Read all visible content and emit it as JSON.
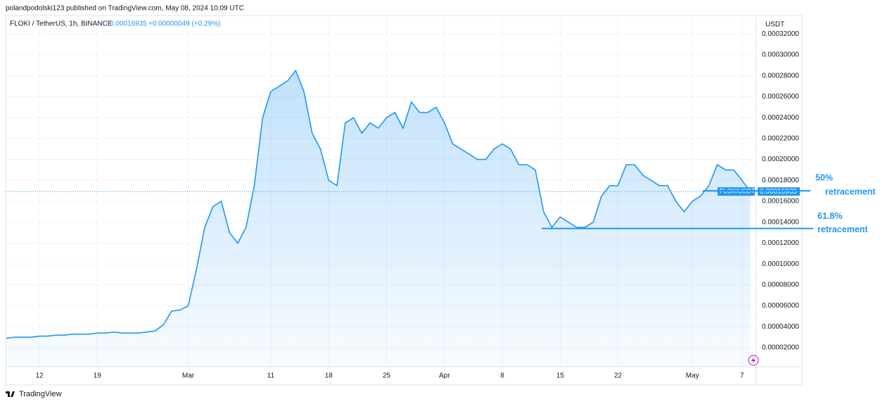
{
  "chart_data": {
    "type": "area",
    "header": "polandpodolski123 published on TradingView.com, May 08, 2024 10:09 UTC",
    "title": "FLOKI / TetherUS, 1h, BINANCE",
    "price": "0.00016935",
    "change": "+0.00000049 (+0.29%)",
    "currency": "USDT",
    "symbol": "FLOKIUSDT",
    "footer": "TradingView",
    "color": "#2196f3",
    "categories": [
      null,
      null,
      null,
      null,
      "12",
      null,
      null,
      null,
      null,
      null,
      null,
      "19",
      null,
      null,
      null,
      null,
      null,
      null,
      null,
      null,
      null,
      null,
      "Mar",
      null,
      null,
      null,
      null,
      null,
      null,
      null,
      null,
      null,
      "11",
      null,
      null,
      null,
      null,
      null,
      null,
      "18",
      null,
      null,
      null,
      null,
      null,
      null,
      "25",
      null,
      null,
      null,
      null,
      null,
      null,
      "Apr",
      null,
      null,
      null,
      null,
      null,
      null,
      "8",
      null,
      null,
      null,
      null,
      null,
      null,
      "15",
      null,
      null,
      null,
      null,
      null,
      null,
      "22",
      null,
      null,
      null,
      null,
      null,
      null,
      null,
      null,
      "May",
      null,
      null,
      null,
      null,
      null,
      "7",
      null
    ],
    "values": [
      2.9e-05,
      3e-05,
      3e-05,
      3e-05,
      3.1e-05,
      3.1e-05,
      3.2e-05,
      3.2e-05,
      3.3e-05,
      3.3e-05,
      3.3e-05,
      3.4e-05,
      3.4e-05,
      3.5e-05,
      3.4e-05,
      3.4e-05,
      3.4e-05,
      3.5e-05,
      3.6e-05,
      4.2e-05,
      5.5e-05,
      5.6e-05,
      6e-05,
      9.5e-05,
      0.000135,
      0.000155,
      0.00016,
      0.00013,
      0.00012,
      0.000135,
      0.000175,
      0.00024,
      0.000265,
      0.00027,
      0.000275,
      0.000285,
      0.000265,
      0.000225,
      0.00021,
      0.00018,
      0.000175,
      0.000235,
      0.00024,
      0.000225,
      0.000235,
      0.00023,
      0.00024,
      0.000245,
      0.00023,
      0.000255,
      0.000245,
      0.000245,
      0.00025,
      0.000235,
      0.000215,
      0.00021,
      0.000205,
      0.0002,
      0.0002,
      0.00021,
      0.000215,
      0.00021,
      0.000195,
      0.000195,
      0.00019,
      0.00015,
      0.000135,
      0.000145,
      0.00014,
      0.000135,
      0.000135,
      0.00014,
      0.000165,
      0.000175,
      0.000175,
      0.000195,
      0.000195,
      0.000185,
      0.00018,
      0.000175,
      0.000175,
      0.00016,
      0.00015,
      0.00016,
      0.000165,
      0.000175,
      0.000195,
      0.00019,
      0.00019,
      0.00018,
      0.00016935
    ],
    "ylim": [
      0,
      0.00034
    ],
    "yticks": [
      {
        "value": 2e-05,
        "label": "0.00002000"
      },
      {
        "value": 4e-05,
        "label": "0.00004000"
      },
      {
        "value": 6e-05,
        "label": "0.00006000"
      },
      {
        "value": 8e-05,
        "label": "0.00008000"
      },
      {
        "value": 0.0001,
        "label": "0.00010000"
      },
      {
        "value": 0.00012,
        "label": "0.00012000"
      },
      {
        "value": 0.00014,
        "label": "0.00014000"
      },
      {
        "value": 0.00016,
        "label": "0.00016000"
      },
      {
        "value": 0.00018,
        "label": "0.00018000"
      },
      {
        "value": 0.0002,
        "label": "0.00020000"
      },
      {
        "value": 0.00022,
        "label": "0.00022000"
      },
      {
        "value": 0.00024,
        "label": "0.00024000"
      },
      {
        "value": 0.00026,
        "label": "0.00026000"
      },
      {
        "value": 0.00028,
        "label": "0.00028000"
      },
      {
        "value": 0.0003,
        "label": "0.00030000"
      },
      {
        "value": 0.00032,
        "label": "0.00032000"
      }
    ],
    "grid": true,
    "annotations": [
      {
        "lines": [
          "50%",
          "retracement"
        ],
        "value": 0.00017
      },
      {
        "lines": [
          "61.8%",
          "retracement"
        ],
        "value": 0.000134
      }
    ]
  }
}
